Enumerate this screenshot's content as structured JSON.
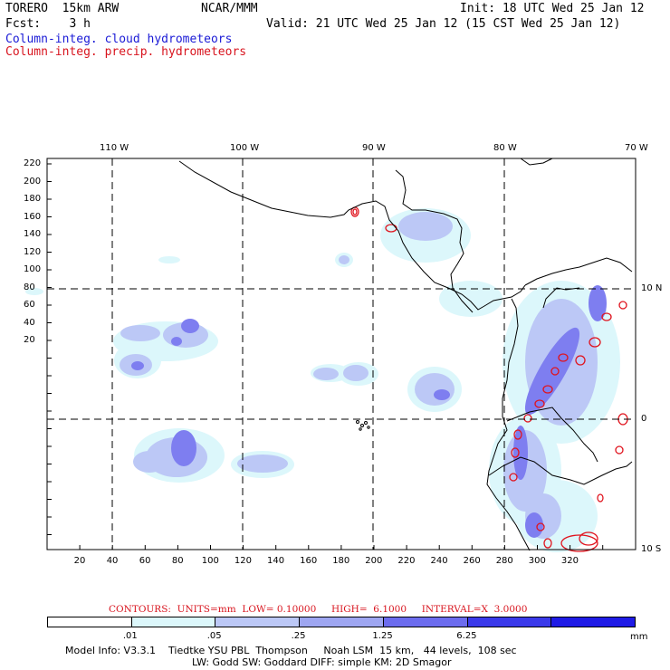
{
  "header": {
    "model": "TORERO  15km ARW",
    "org": "NCAR/MMM",
    "init": "Init: 18 UTC Wed 25 Jan 12",
    "fcst": "Fcst:    3 h",
    "valid": "Valid: 21 UTC Wed 25 Jan 12 (15 CST Wed 25 Jan 12)",
    "field1": "Column-integ. cloud hydrometeors",
    "field2": "Column-integ. precip. hydrometeors"
  },
  "map": {
    "lon_labels": [
      "110 W",
      "100 W",
      "90 W",
      "80 W",
      "70 W"
    ],
    "lat_labels": [
      "10 N",
      "0",
      "10 S"
    ],
    "y_ticks": [
      "220",
      "200",
      "180",
      "160",
      "140",
      "120",
      "100",
      "80",
      "60",
      "40",
      "20"
    ],
    "x_ticks": [
      "20",
      "40",
      "60",
      "80",
      "100",
      "120",
      "140",
      "160",
      "180",
      "200",
      "220",
      "240",
      "260",
      "280",
      "300",
      "320"
    ]
  },
  "legend": {
    "contours": "CONTOURS:  UNITS=mm  LOW= 0.10000     HIGH=  6.1000     INTERVAL=X  3.0000",
    "bins": [
      "",
      ".01",
      ".05",
      ".25",
      "1.25",
      "6.25",
      ""
    ],
    "unit": "mm",
    "colors": [
      "#ffffff",
      "#dcf7fb",
      "#bcc8f6",
      "#9ea6f1",
      "#6c6cee",
      "#3a39ea",
      "#1f1be6"
    ]
  },
  "footer": {
    "line1": "Model Info: V3.3.1    Tiedtke YSU PBL  Thompson     Noah LSM  15 km,   44 levels,  108 sec",
    "line2": "LW: Godd SW: Goddard DIFF: simple KM: 2D Smagor"
  }
}
